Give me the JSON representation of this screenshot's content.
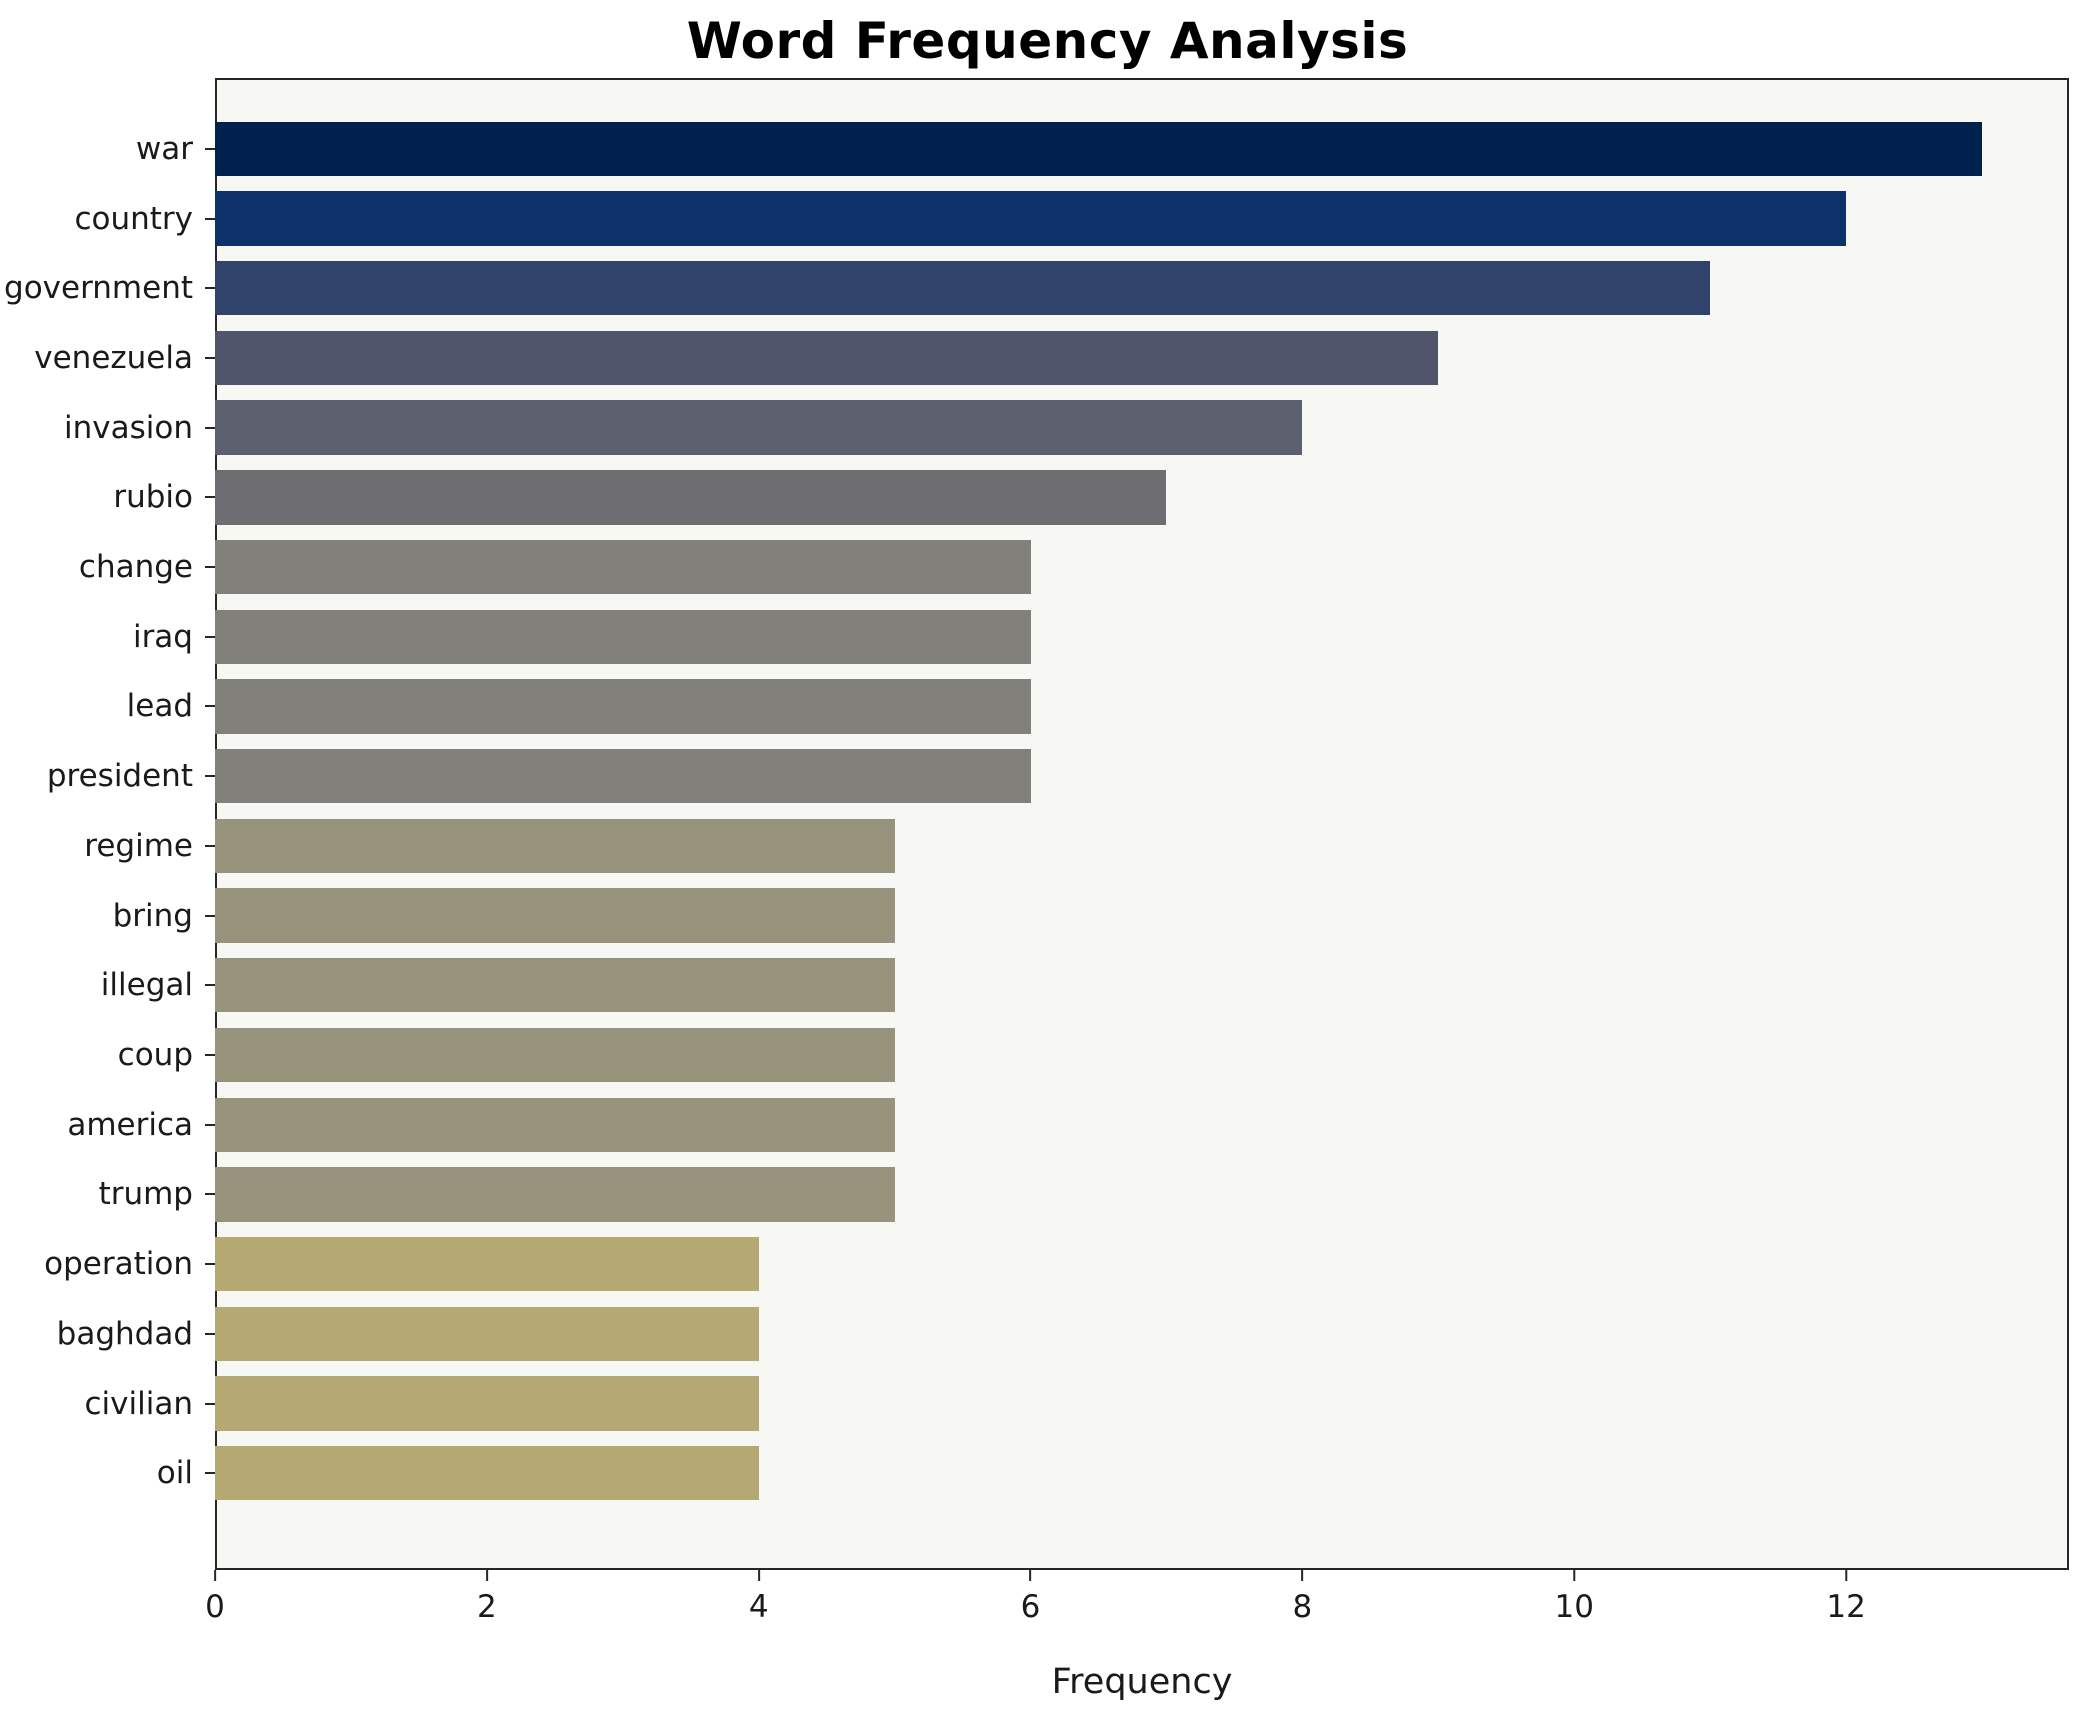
{
  "chart_data": {
    "type": "bar",
    "orientation": "horizontal",
    "title": "Word Frequency Analysis",
    "xlabel": "Frequency",
    "ylabel": "",
    "categories": [
      "war",
      "country",
      "government",
      "venezuela",
      "invasion",
      "rubio",
      "change",
      "iraq",
      "lead",
      "president",
      "regime",
      "bring",
      "illegal",
      "coup",
      "america",
      "trump",
      "operation",
      "baghdad",
      "civilian",
      "oil"
    ],
    "values": [
      13,
      12,
      11,
      9,
      8,
      7,
      6,
      6,
      6,
      6,
      5,
      5,
      5,
      5,
      5,
      5,
      4,
      4,
      4,
      4
    ],
    "bar_colors": [
      "#00204e",
      "#0c3269",
      "#31436b",
      "#50556c",
      "#5c606e",
      "#6e6e72",
      "#82807a",
      "#82807a",
      "#82807a",
      "#82807a",
      "#97937c",
      "#97937c",
      "#97937c",
      "#97937c",
      "#97937c",
      "#97937c",
      "#b4a973",
      "#b4a973",
      "#b4a973",
      "#b4a973"
    ],
    "xlim": [
      0,
      13.64
    ],
    "xticks": [
      0,
      2,
      4,
      6,
      8,
      10,
      12
    ],
    "grid": false,
    "legend_position": "none",
    "plot_background": "#f7f7f4",
    "spine_color": "#262626"
  }
}
